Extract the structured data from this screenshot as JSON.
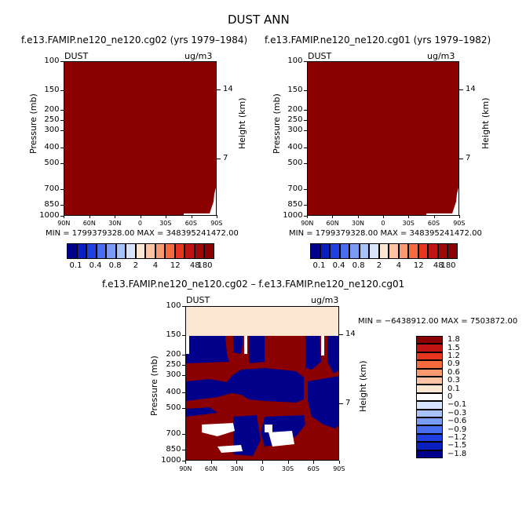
{
  "figure_title": "DUST ANN",
  "colors": {
    "dark_red": "#8b0000",
    "navy": "#00008b",
    "blue": "#1f3fe0",
    "peach": "#fde7d2"
  },
  "panels": [
    {
      "title": "f.e13.FAMIP.ne120_ne120.cg02 (yrs 1979–1984)",
      "var_label": "DUST",
      "units": "ug/m3",
      "min_max": "MIN = 1799379328.00    MAX = 348395241472.00",
      "ylabel": "Pressure (mb)",
      "ylabel_right": "Height (km)"
    },
    {
      "title": "f.e13.FAMIP.ne120_ne120.cg01 (yrs 1979–1982)",
      "var_label": "DUST",
      "units": "ug/m3",
      "min_max": "MIN = 1799379328.00    MAX = 348395241472.00",
      "ylabel": "Pressure (mb)",
      "ylabel_right": "Height (km)"
    }
  ],
  "diff_panel": {
    "title": "f.e13.FAMIP.ne120_ne120.cg02 – f.e13.FAMIP.ne120_ne120.cg01",
    "var_label": "DUST",
    "units": "ug/m3",
    "min_max": "MIN = −6438912.00   MAX = 7503872.00",
    "ylabel": "Pressure (mb)",
    "ylabel_right": "Height (km)"
  },
  "chart_data": [
    {
      "type": "heatmap",
      "title": "f.e13.FAMIP.ne120_ne120.cg02 (yrs 1979–1984)",
      "x_ticks": [
        "90N",
        "60N",
        "30N",
        "0",
        "30S",
        "60S",
        "90S"
      ],
      "y_ticks": [
        "100",
        "150",
        "200",
        "250",
        "300",
        "400",
        "500",
        "700",
        "850",
        "1000"
      ],
      "y_right_ticks": [
        "14",
        "7"
      ],
      "colorbar_labels": [
        "0.1",
        "0.4",
        "0.8",
        "2",
        "4",
        "12",
        "48",
        "180"
      ],
      "colorbar_colors": [
        "#00008b",
        "#0a1fc0",
        "#1f3fe0",
        "#4a6ef0",
        "#7b9cf5",
        "#a9c3fa",
        "#d6e5fd",
        "#fde7d2",
        "#fcc3a4",
        "#fa9a70",
        "#f66a3f",
        "#e8361e",
        "#c01414",
        "#9c0a0a",
        "#8b0000"
      ]
    },
    {
      "type": "heatmap",
      "title": "f.e13.FAMIP.ne120_ne120.cg01 (yrs 1979–1982)",
      "x_ticks": [
        "90N",
        "60N",
        "30N",
        "0",
        "30S",
        "60S",
        "90S"
      ],
      "y_ticks": [
        "100",
        "150",
        "200",
        "250",
        "300",
        "400",
        "500",
        "700",
        "850",
        "1000"
      ],
      "y_right_ticks": [
        "14",
        "7"
      ],
      "colorbar_labels": [
        "0.1",
        "0.4",
        "0.8",
        "2",
        "4",
        "12",
        "48",
        "180"
      ]
    },
    {
      "type": "heatmap",
      "title": "f.e13.FAMIP.ne120_ne120.cg02 – f.e13.FAMIP.ne120_ne120.cg01",
      "x_ticks": [
        "90N",
        "60N",
        "30N",
        "0",
        "30S",
        "60S",
        "90S"
      ],
      "y_ticks": [
        "100",
        "150",
        "200",
        "250",
        "300",
        "400",
        "500",
        "700",
        "850",
        "1000"
      ],
      "y_right_ticks": [
        "14",
        "7"
      ],
      "colorbar_labels": [
        "1.8",
        "1.5",
        "1.2",
        "0.9",
        "0.6",
        "0.3",
        "0.1",
        "0",
        "−0.1",
        "−0.3",
        "−0.6",
        "−0.9",
        "−1.2",
        "−1.5",
        "−1.8"
      ],
      "colorbar_colors": [
        "#8b0000",
        "#c01414",
        "#e8361e",
        "#f66a3f",
        "#fa9a70",
        "#fcc3a4",
        "#fde7d2",
        "#ffffff",
        "#d6e5fd",
        "#a9c3fa",
        "#7b9cf5",
        "#4a6ef0",
        "#1f3fe0",
        "#0a1fc0",
        "#00008b"
      ]
    }
  ]
}
